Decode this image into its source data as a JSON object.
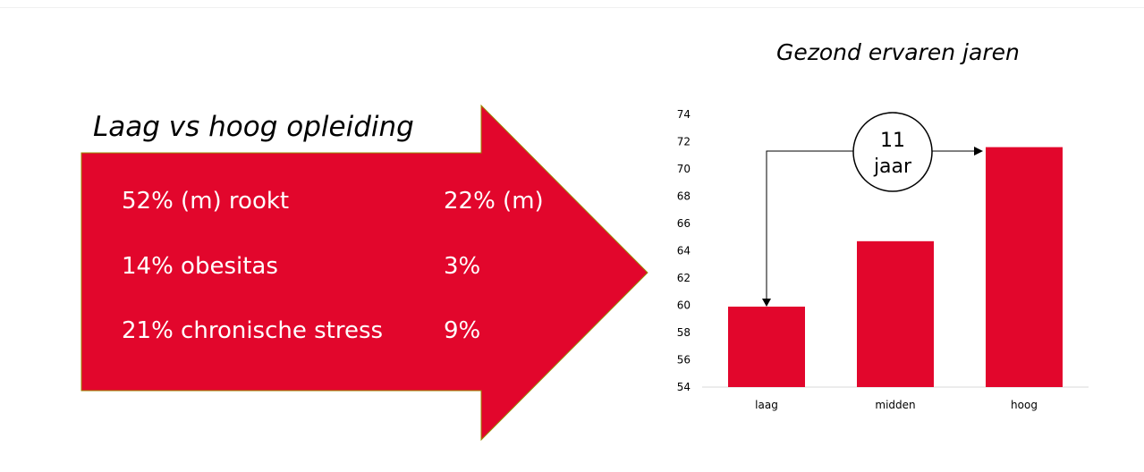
{
  "arrow": {
    "title": "Laag vs hoog opleiding",
    "color": "#e2062c",
    "rows": [
      {
        "left": "52% (m) rookt",
        "right": "22% (m)"
      },
      {
        "left": "14% obesitas",
        "right": "3%"
      },
      {
        "left": "21% chronische stress",
        "right": "9%"
      }
    ]
  },
  "chart_data": {
    "type": "bar",
    "title": "Gezond ervaren jaren",
    "categories": [
      "laag",
      "midden",
      "hoog"
    ],
    "values": [
      59.9,
      64.7,
      71.6
    ],
    "ylim": [
      54,
      74
    ],
    "yticks": [
      54,
      56,
      58,
      60,
      62,
      64,
      66,
      68,
      70,
      72,
      74
    ],
    "xlabel": "",
    "ylabel": "",
    "bar_color": "#e2062c",
    "grid": false,
    "annotation": {
      "line1": "11",
      "line2": "jaar",
      "from": "laag",
      "to": "hoog"
    }
  }
}
